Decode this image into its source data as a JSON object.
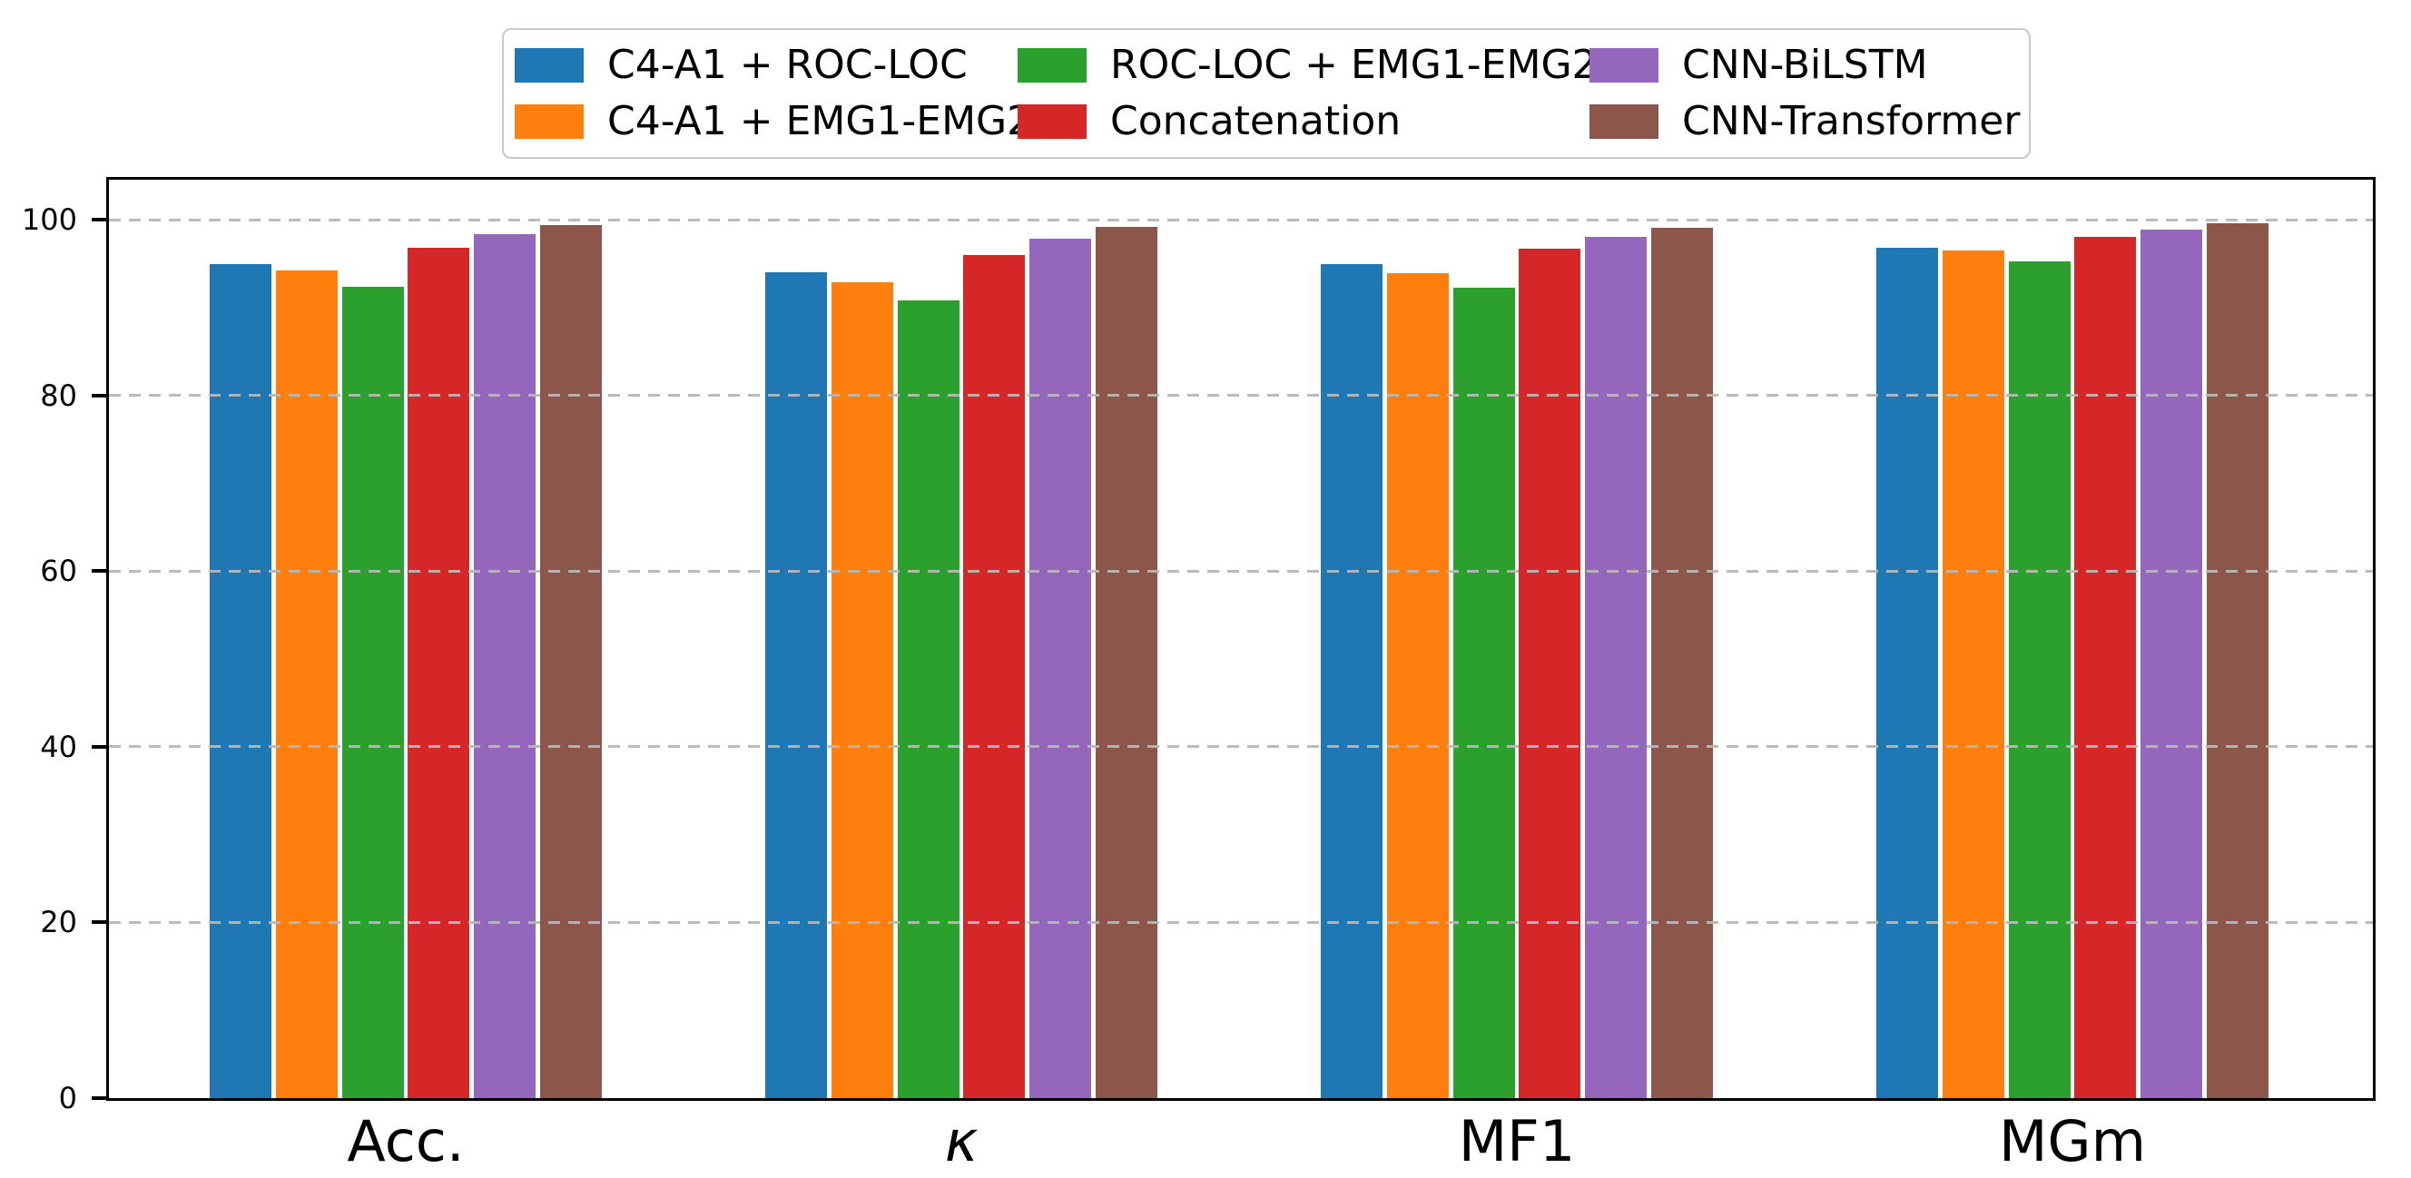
{
  "figure": {
    "background_color": "#ffffff",
    "frame_color": "#000000",
    "grid_color": "#b7b7b7"
  },
  "legend": {
    "items": [
      {
        "label": "C4-A1 + ROC-LOC",
        "color": "#1f77b4"
      },
      {
        "label": "C4-A1 + EMG1-EMG2",
        "color": "#ff7f0e"
      },
      {
        "label": "ROC-LOC + EMG1-EMG2",
        "color": "#2ca02c"
      },
      {
        "label": "Concatenation",
        "color": "#d62728"
      },
      {
        "label": "CNN-BiLSTM",
        "color": "#9467bd"
      },
      {
        "label": "CNN-Transformer",
        "color": "#8c564b"
      }
    ]
  },
  "chart_data": {
    "type": "bar",
    "title": "",
    "xlabel": "",
    "ylabel": "",
    "categories": [
      "Acc.",
      "κ",
      "MF1",
      "MGm"
    ],
    "category_styles": [
      "normal",
      "italic",
      "normal",
      "normal"
    ],
    "series": [
      {
        "name": "C4-A1 + ROC-LOC",
        "color": "#1f77b4",
        "values": [
          94.9,
          94.0,
          94.9,
          96.8
        ]
      },
      {
        "name": "C4-A1 + EMG1-EMG2",
        "color": "#ff7f0e",
        "values": [
          94.2,
          92.9,
          93.9,
          96.5
        ]
      },
      {
        "name": "ROC-LOC + EMG1-EMG2",
        "color": "#2ca02c",
        "values": [
          92.4,
          90.8,
          92.3,
          95.3
        ]
      },
      {
        "name": "Concatenation",
        "color": "#d62728",
        "values": [
          96.8,
          96.0,
          96.7,
          98.0
        ]
      },
      {
        "name": "CNN-BiLSTM",
        "color": "#9467bd",
        "values": [
          98.3,
          97.8,
          98.0,
          98.9
        ]
      },
      {
        "name": "CNN-Transformer",
        "color": "#8c564b",
        "values": [
          99.4,
          99.2,
          99.1,
          99.6
        ]
      }
    ],
    "yticks": [
      0,
      20,
      40,
      60,
      80,
      100
    ],
    "ylim": [
      0,
      104.6
    ],
    "grid": {
      "axis": "y",
      "line_style": "dashed",
      "drawn_over_bars": true
    },
    "legend_position": "upper center, 3 columns, 2 rows"
  }
}
